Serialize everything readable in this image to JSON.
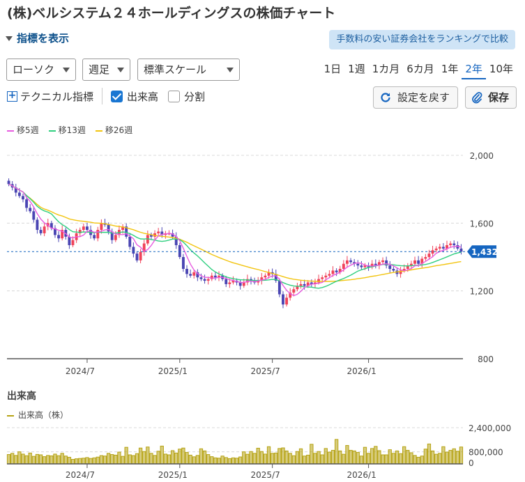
{
  "header": {
    "title": "(株)ベルシステム２４ホールディングスの株価チャート",
    "toggle_label": "指標を表示",
    "promo_label": "手数料の安い証券会社をランキングで比較"
  },
  "controls": {
    "chart_type": "ローソク",
    "interval": "週足",
    "scale": "標準スケール",
    "periods": [
      "1日",
      "1週",
      "1カ月",
      "6カ月",
      "1年",
      "2年",
      "10年"
    ],
    "active_period": "2年",
    "technical_label": "テクニカル指標",
    "volume_label": "出来高",
    "volume_checked": true,
    "split_label": "分割",
    "split_checked": false,
    "reset_label": "設定を戻す",
    "save_label": "保存"
  },
  "colors": {
    "up": "#f0435a",
    "down": "#4a45b3",
    "ma5": "#e75be0",
    "ma13": "#2fcf7f",
    "ma26": "#f2c40e",
    "volume": "#b6a313",
    "last_price_tag": "#1565c0"
  },
  "chart_data": [
    {
      "type": "candlestick",
      "legend": [
        {
          "label": "移5週",
          "color": "#e75be0"
        },
        {
          "label": "移13週",
          "color": "#2fcf7f"
        },
        {
          "label": "移26週",
          "color": "#f2c40e"
        }
      ],
      "y_ticks": [
        "2,000",
        "1,600",
        "1,200",
        "800"
      ],
      "ylim": [
        800,
        2000
      ],
      "x_ticks": [
        "2024/7",
        "2025/1",
        "2025/7",
        "2026/1"
      ],
      "last_price_label": "1,432",
      "last_price": 1432,
      "close": [
        1830,
        1810,
        1780,
        1760,
        1740,
        1690,
        1670,
        1620,
        1560,
        1540,
        1580,
        1600,
        1570,
        1530,
        1510,
        1560,
        1520,
        1470,
        1500,
        1540,
        1560,
        1580,
        1560,
        1530,
        1510,
        1560,
        1600,
        1590,
        1550,
        1500,
        1530,
        1560,
        1580,
        1520,
        1460,
        1420,
        1380,
        1430,
        1480,
        1530,
        1520,
        1540,
        1550,
        1530,
        1540,
        1540,
        1520,
        1470,
        1400,
        1330,
        1300,
        1290,
        1310,
        1280,
        1270,
        1260,
        1270,
        1290,
        1280,
        1290,
        1270,
        1240,
        1250,
        1260,
        1250,
        1230,
        1250,
        1270,
        1260,
        1250,
        1260,
        1280,
        1290,
        1310,
        1300,
        1260,
        1180,
        1120,
        1160,
        1190,
        1210,
        1230,
        1240,
        1230,
        1250,
        1240,
        1250,
        1270,
        1280,
        1290,
        1300,
        1320,
        1310,
        1330,
        1360,
        1380,
        1370,
        1360,
        1350,
        1340,
        1350,
        1340,
        1360,
        1350,
        1370,
        1380,
        1350,
        1330,
        1320,
        1300,
        1320,
        1330,
        1350,
        1360,
        1380,
        1360,
        1390,
        1400,
        1420,
        1440,
        1450,
        1460,
        1450,
        1470,
        1480,
        1470,
        1450,
        1432
      ],
      "ma5": [
        1830,
        1820,
        1807,
        1795,
        1784,
        1752,
        1728,
        1696,
        1656,
        1624,
        1602,
        1588,
        1570,
        1566,
        1558,
        1552,
        1538,
        1518,
        1512,
        1520,
        1520,
        1530,
        1552,
        1554,
        1546,
        1548,
        1552,
        1560,
        1562,
        1548,
        1536,
        1534,
        1532,
        1538,
        1524,
        1508,
        1472,
        1458,
        1434,
        1444,
        1468,
        1500,
        1524,
        1534,
        1536,
        1540,
        1536,
        1520,
        1496,
        1452,
        1404,
        1358,
        1324,
        1302,
        1290,
        1280,
        1280,
        1276,
        1276,
        1280,
        1280,
        1274,
        1266,
        1262,
        1256,
        1250,
        1250,
        1256,
        1258,
        1254,
        1258,
        1264,
        1268,
        1280,
        1288,
        1290,
        1268,
        1232,
        1204,
        1184,
        1172,
        1180,
        1198,
        1220,
        1230,
        1240,
        1242,
        1246,
        1250,
        1266,
        1278,
        1292,
        1300,
        1310,
        1324,
        1340,
        1352,
        1362,
        1366,
        1362,
        1352,
        1348,
        1346,
        1350,
        1352,
        1358,
        1360,
        1356,
        1348,
        1336,
        1324,
        1320,
        1324,
        1332,
        1348,
        1350,
        1362,
        1374,
        1388,
        1402,
        1422,
        1432,
        1440,
        1448,
        1458,
        1462,
        1464,
        1458
      ],
      "ma13": [
        1830,
        1820,
        1807,
        1795,
        1784,
        1763,
        1744,
        1723,
        1699,
        1683,
        1672,
        1665,
        1654,
        1630,
        1608,
        1591,
        1579,
        1562,
        1549,
        1547,
        1545,
        1548,
        1547,
        1545,
        1543,
        1547,
        1545,
        1546,
        1545,
        1541,
        1541,
        1544,
        1548,
        1545,
        1538,
        1528,
        1515,
        1507,
        1506,
        1508,
        1503,
        1500,
        1495,
        1492,
        1495,
        1500,
        1506,
        1506,
        1502,
        1488,
        1467,
        1443,
        1424,
        1406,
        1386,
        1365,
        1346,
        1326,
        1312,
        1300,
        1292,
        1283,
        1277,
        1272,
        1268,
        1266,
        1265,
        1265,
        1263,
        1261,
        1262,
        1262,
        1263,
        1265,
        1268,
        1267,
        1260,
        1249,
        1240,
        1234,
        1229,
        1228,
        1227,
        1224,
        1223,
        1222,
        1218,
        1216,
        1220,
        1227,
        1236,
        1247,
        1257,
        1265,
        1273,
        1283,
        1293,
        1305,
        1317,
        1325,
        1331,
        1338,
        1343,
        1348,
        1352,
        1356,
        1357,
        1356,
        1354,
        1351,
        1349,
        1348,
        1348,
        1349,
        1351,
        1351,
        1353,
        1356,
        1361,
        1368,
        1376,
        1384,
        1392,
        1401,
        1410,
        1418,
        1424,
        1429
      ],
      "ma26": [
        1830,
        1820,
        1807,
        1795,
        1784,
        1763,
        1747,
        1729,
        1710,
        1693,
        1683,
        1676,
        1667,
        1657,
        1648,
        1642,
        1634,
        1625,
        1620,
        1616,
        1613,
        1611,
        1608,
        1605,
        1601,
        1600,
        1599,
        1596,
        1592,
        1588,
        1583,
        1580,
        1577,
        1573,
        1567,
        1561,
        1553,
        1546,
        1540,
        1536,
        1532,
        1528,
        1524,
        1522,
        1520,
        1518,
        1515,
        1511,
        1505,
        1496,
        1487,
        1476,
        1466,
        1456,
        1446,
        1436,
        1425,
        1415,
        1406,
        1397,
        1389,
        1381,
        1373,
        1366,
        1360,
        1354,
        1348,
        1342,
        1336,
        1331,
        1326,
        1320,
        1314,
        1309,
        1303,
        1297,
        1291,
        1284,
        1278,
        1273,
        1269,
        1266,
        1263,
        1261,
        1259,
        1258,
        1257,
        1256,
        1256,
        1256,
        1256,
        1257,
        1258,
        1260,
        1262,
        1264,
        1266,
        1269,
        1272,
        1275,
        1278,
        1282,
        1286,
        1289,
        1293,
        1297,
        1301,
        1305,
        1309,
        1312,
        1315,
        1318,
        1321,
        1324,
        1328,
        1331,
        1334,
        1337,
        1341,
        1345,
        1349,
        1352,
        1355,
        1359,
        1362,
        1366,
        1370,
        1373
      ]
    },
    {
      "type": "bar",
      "title": "出来高",
      "legend": [
        {
          "label": "出来高（株）",
          "color": "#b6a313"
        }
      ],
      "y_ticks": [
        "2,400,000",
        "800,000",
        "0"
      ],
      "ylim": [
        0,
        2400000
      ],
      "x_ticks": [
        "2024/7",
        "2025/1",
        "2025/7",
        "2026/1"
      ],
      "values": [
        620000,
        700000,
        560000,
        800000,
        650000,
        540000,
        720000,
        500000,
        630000,
        600000,
        480000,
        560000,
        530000,
        650000,
        540000,
        700000,
        520000,
        440000,
        300000,
        340000,
        360000,
        380000,
        420000,
        360000,
        400000,
        450000,
        550000,
        520000,
        700000,
        620000,
        580000,
        780000,
        500000,
        1100000,
        600000,
        550000,
        680000,
        1050000,
        820000,
        1120000,
        700000,
        560000,
        840000,
        1180000,
        650000,
        600000,
        880000,
        720000,
        980000,
        1050000,
        760000,
        580000,
        470000,
        560000,
        1000000,
        860000,
        620000,
        480000,
        400000,
        380000,
        520000,
        420000,
        350000,
        400000,
        380000,
        460000,
        800000,
        640000,
        820000,
        700000,
        1040000,
        820000,
        650000,
        1140000,
        700000,
        720000,
        1020000,
        1060000,
        860000,
        700000,
        540000,
        820000,
        1000000,
        520000,
        580000,
        1300000,
        700000,
        820000,
        600000,
        1020000,
        780000,
        900000,
        1620000,
        860000,
        640000,
        1220000,
        900000,
        860000,
        760000,
        520000,
        1100000,
        700000,
        1020000,
        1160000,
        880000,
        600000,
        600000,
        940000,
        700000,
        860000,
        680000,
        1140000,
        900000,
        740000,
        560000,
        440000,
        520000,
        980000,
        1320000,
        860000,
        640000,
        700000,
        1140000,
        780000,
        900000,
        1000000,
        840000,
        1120000
      ]
    }
  ]
}
